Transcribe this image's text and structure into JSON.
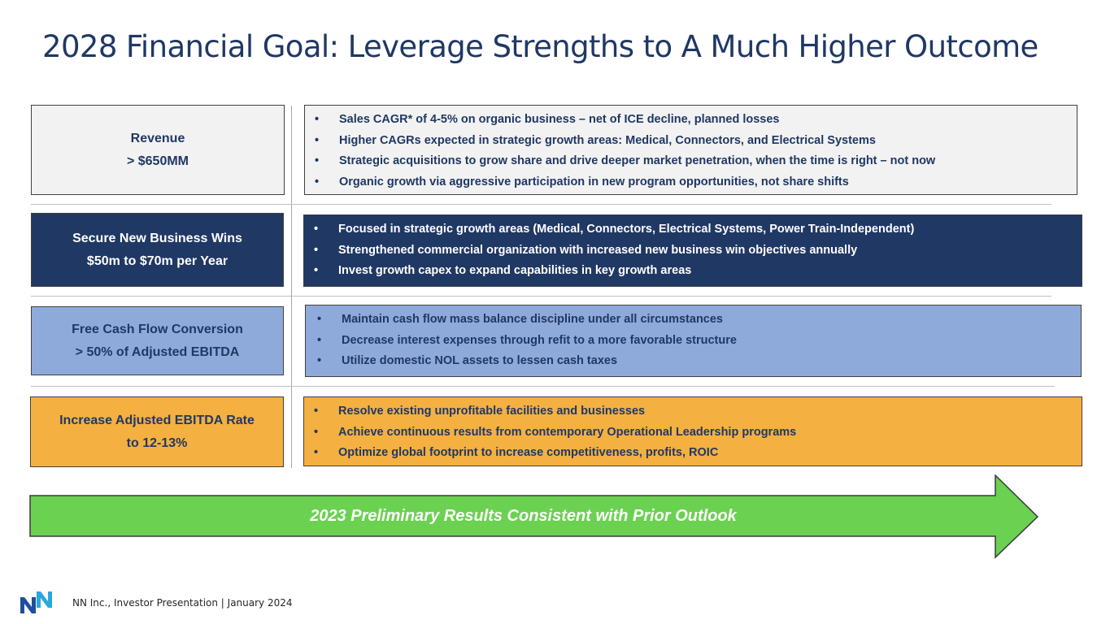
{
  "title": "2028 Financial Goal: Leverage Strengths to A Much Higher Outcome",
  "colors": {
    "navy": "#203864",
    "light_gray": "#f2f2f2",
    "light_blue": "#8eaadb",
    "gold": "#f4b041",
    "green": "#6bd151",
    "title": "#1f3864"
  },
  "goals": [
    {
      "label_line1": "Revenue",
      "label_line2": "> $650MM",
      "bullets": [
        "Sales CAGR* of 4-5% on organic business – net of ICE decline, planned losses",
        "Higher CAGRs expected in strategic growth areas: Medical, Connectors, and Electrical Systems",
        "Strategic acquisitions to grow share and drive deeper market penetration, when the time is right – not now",
        "Organic growth via aggressive participation in new program opportunities, not share shifts"
      ]
    },
    {
      "label_line1": "Secure New Business Wins",
      "label_line2": "$50m to $70m per Year",
      "bullets": [
        "Focused in strategic growth areas (Medical, Connectors, Electrical Systems, Power Train-Independent)",
        "Strengthened commercial organization with increased new business win objectives annually",
        "Invest growth capex to expand capabilities in key growth areas"
      ]
    },
    {
      "label_line1": "Free Cash Flow Conversion",
      "label_line2": "> 50% of Adjusted EBITDA",
      "bullets": [
        "Maintain cash flow mass balance discipline under all circumstances",
        "Decrease interest expenses through refit to a more favorable structure",
        "Utilize domestic NOL assets to lessen cash taxes"
      ]
    },
    {
      "label_line1": "Increase Adjusted EBITDA Rate",
      "label_line2": "to 12-13%",
      "bullets": [
        "Resolve existing unprofitable facilities and businesses",
        "Achieve continuous results from contemporary Operational Leadership programs",
        "Optimize global footprint to increase competitiveness, profits, ROIC"
      ]
    }
  ],
  "bullet_char": "•",
  "banner": "2023 Preliminary Results Consistent with Prior Outlook",
  "footer": "NN Inc., Investor Presentation | January 2024",
  "logo_icon": "nn-logo-icon"
}
